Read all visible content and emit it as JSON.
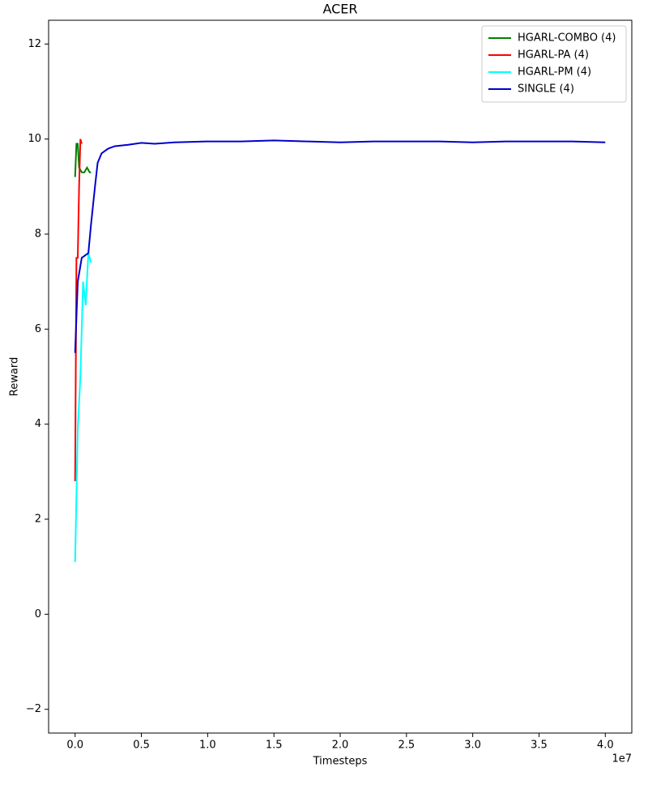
{
  "chart_data": {
    "type": "line",
    "title": "ACER",
    "xlabel": "Timesteps",
    "ylabel": "Reward",
    "x_offset_label": "1e7",
    "xlim": [
      -0.2,
      4.2
    ],
    "ylim": [
      -2.5,
      12.5
    ],
    "xticks": [
      {
        "value": 0,
        "label": "0.0"
      },
      0.5,
      {
        "value": 1,
        "label": "1.0"
      },
      1.5,
      {
        "value": 2,
        "label": "2.0"
      },
      2.5,
      {
        "value": 3,
        "label": "3.0"
      },
      3.5,
      {
        "value": 4,
        "label": "4.0"
      }
    ],
    "yticks": [
      {
        "value": -2,
        "label": "−2"
      },
      0,
      2,
      4,
      6,
      8,
      10,
      12
    ],
    "grid": false,
    "legend": "upper right",
    "series": [
      {
        "name": "HGARL-COMBO (4)",
        "color": "#008000",
        "x": [
          0.0,
          0.01,
          0.02,
          0.03,
          0.05,
          0.07,
          0.09,
          0.11,
          0.12
        ],
        "values": [
          9.2,
          9.9,
          9.9,
          9.4,
          9.3,
          9.3,
          9.4,
          9.3,
          9.3
        ]
      },
      {
        "name": "HGARL-PA (4)",
        "color": "#ff0000",
        "x": [
          0.0,
          0.01,
          0.02,
          0.03,
          0.04,
          0.05
        ],
        "values": [
          2.8,
          7.5,
          7.5,
          9.0,
          10.0,
          9.9
        ]
      },
      {
        "name": "HGARL-PM (4)",
        "color": "#00ffff",
        "x": [
          0.0,
          0.01,
          0.02,
          0.04,
          0.06,
          0.08,
          0.1,
          0.12
        ],
        "values": [
          1.1,
          2.5,
          3.9,
          5.0,
          7.0,
          6.5,
          7.6,
          7.4
        ]
      },
      {
        "name": "SINGLE (4)",
        "color": "#0000cd",
        "x": [
          0.0,
          0.02,
          0.05,
          0.1,
          0.12,
          0.15,
          0.17,
          0.2,
          0.25,
          0.3,
          0.4,
          0.5,
          0.6,
          0.75,
          1.0,
          1.25,
          1.5,
          1.75,
          2.0,
          2.25,
          2.5,
          2.75,
          3.0,
          3.25,
          3.5,
          3.75,
          4.0
        ],
        "values": [
          5.5,
          7.0,
          7.5,
          7.6,
          8.2,
          9.0,
          9.5,
          9.7,
          9.8,
          9.85,
          9.88,
          9.92,
          9.9,
          9.93,
          9.95,
          9.95,
          9.97,
          9.95,
          9.93,
          9.95,
          9.95,
          9.95,
          9.93,
          9.95,
          9.95,
          9.95,
          9.93
        ]
      }
    ]
  }
}
